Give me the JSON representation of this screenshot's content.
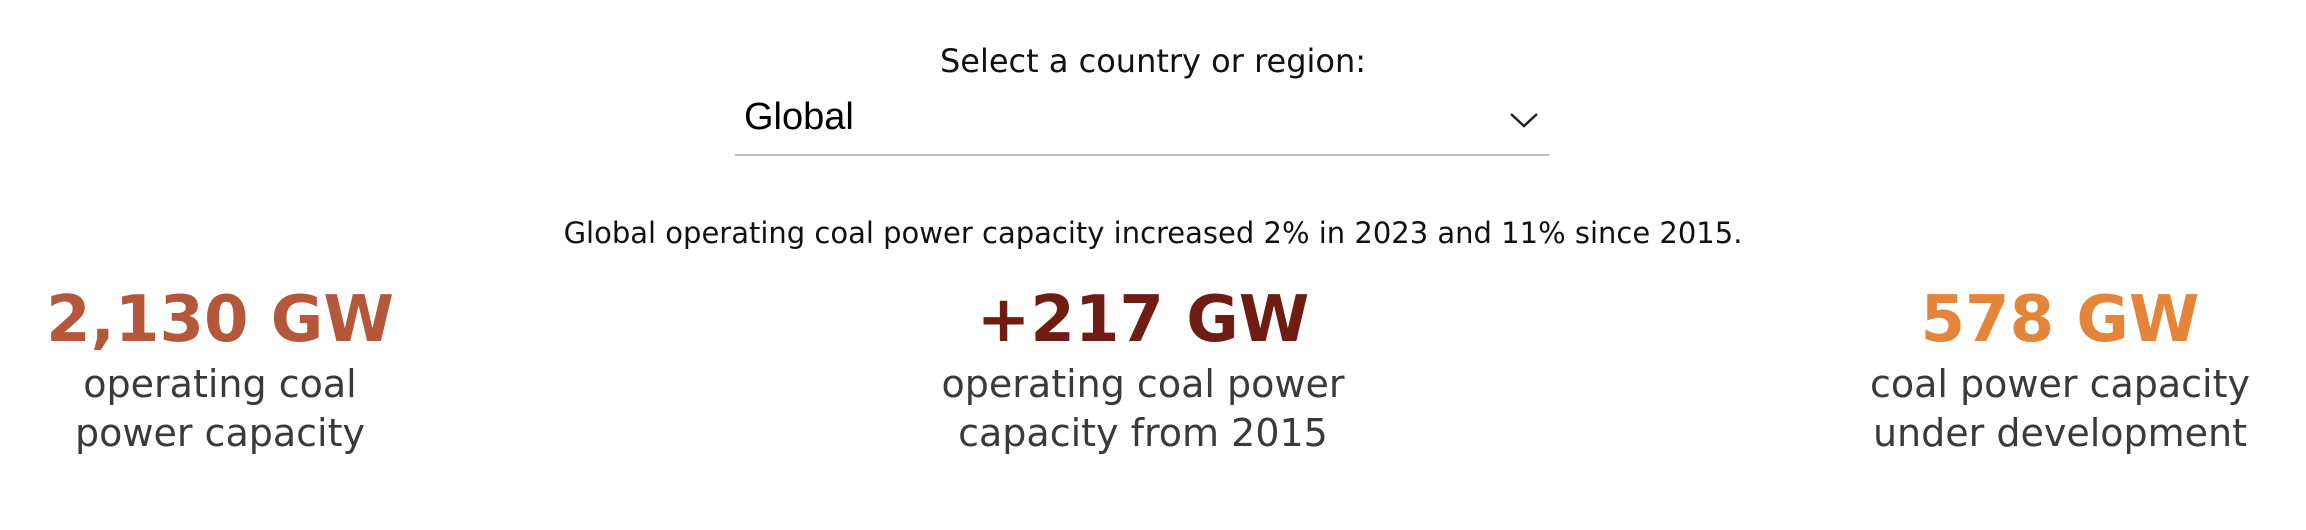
{
  "selector": {
    "label": "Select a country or region:",
    "value": "Global",
    "chevron_icon": "chevron-down-icon"
  },
  "summary": "Global operating coal power capacity increased 2% in 2023 and 11% since 2015.",
  "stats": [
    {
      "value": "2,130 GW",
      "caption": "operating coal\npower capacity",
      "color": "#b5573a"
    },
    {
      "value": "+217 GW",
      "caption": "operating coal power\ncapacity from 2015",
      "color": "#6f1d12"
    },
    {
      "value": "578 GW",
      "caption": "coal power capacity\nunder development",
      "color": "#e5853a"
    }
  ]
}
